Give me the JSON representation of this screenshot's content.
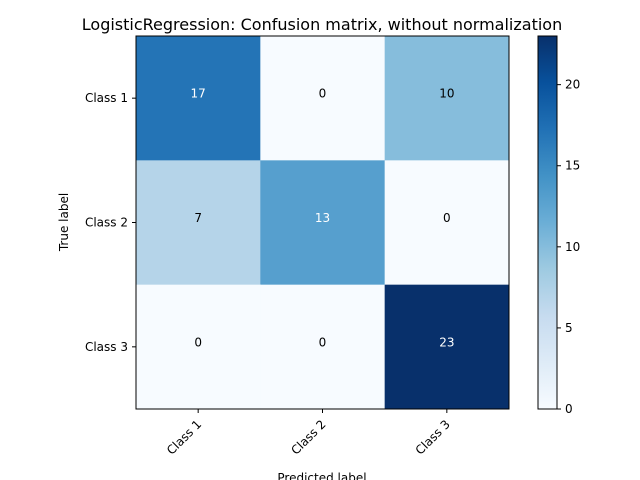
{
  "chart_data": {
    "type": "heatmap",
    "title": "LogisticRegression: Confusion matrix, without normalization",
    "xlabel": "Predicted label",
    "ylabel": "True label",
    "x_categories": [
      "Class 1",
      "Class 2",
      "Class 3"
    ],
    "y_categories": [
      "Class 1",
      "Class 2",
      "Class 3"
    ],
    "values": [
      [
        17,
        0,
        10
      ],
      [
        7,
        13,
        0
      ],
      [
        0,
        0,
        23
      ]
    ],
    "colormap": "Blues",
    "color_range": [
      0,
      23
    ],
    "colorbar_ticks": [
      "0",
      "5",
      "10",
      "15",
      "20"
    ],
    "x_tick_rotation_deg": 45,
    "grid": false
  }
}
